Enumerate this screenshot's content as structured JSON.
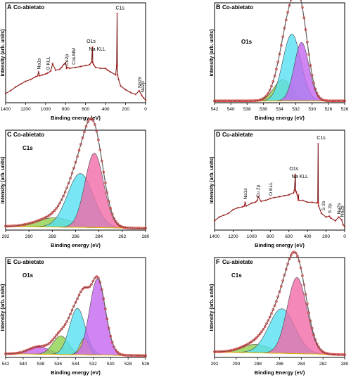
{
  "figure": {
    "colors": {
      "axis": "#000000",
      "raw": "#7a1a1a",
      "fit": "#d61f1f",
      "envelope": "#606060",
      "background_line": "#e8b800",
      "comp_green": "#8fd14f",
      "comp_cyan": "#57e0f2",
      "comp_pink": "#f06aa8",
      "comp_purple": "#c467ef",
      "comp_yellow": "#f2cf4e",
      "comp_gray": "#cccccc"
    }
  },
  "chart_data": [
    {
      "id": "A",
      "letter": "A",
      "type": "line",
      "title": "Co-abietato",
      "xlabel": "Binding energy (eV)",
      "ylabel": "Intensity (arb. units)",
      "xlim": [
        1400,
        0
      ],
      "ylim": [
        0,
        100
      ],
      "xticks": [
        1400,
        1200,
        1000,
        800,
        600,
        400,
        200,
        0
      ],
      "xticklabels": [
        "1400",
        "1200",
        "1000",
        "800",
        "600",
        "400",
        "200",
        "0"
      ],
      "kind": "survey",
      "series": [
        {
          "x": [
            1400,
            1350,
            1300,
            1250,
            1200,
            1150,
            1100,
            1080,
            1071,
            1060,
            1030,
            1000,
            980,
            950,
            930,
            900,
            860,
            840,
            820,
            800,
            790,
            780,
            760,
            700,
            650,
            600,
            560,
            540,
            531,
            528,
            520,
            500,
            450,
            400,
            380,
            350,
            300,
            290,
            285,
            283,
            280,
            270,
            250,
            200,
            150,
            100,
            64,
            40,
            20,
            0
          ],
          "y": [
            10,
            13,
            17,
            20,
            23,
            25,
            28,
            29,
            33,
            29,
            30,
            31,
            32,
            34,
            42,
            35,
            36,
            38,
            41,
            43,
            37,
            38,
            37,
            38,
            39,
            40,
            41,
            44,
            60,
            43,
            41,
            38,
            37,
            37,
            35,
            33,
            30,
            40,
            96,
            40,
            30,
            25,
            18,
            14,
            11,
            9,
            13,
            8,
            5,
            3
          ]
        }
      ],
      "annotations": [
        {
          "text": "Na1s",
          "x": 1071
        },
        {
          "text": "O KLL",
          "x": 978
        },
        {
          "text": "Co2p",
          "x": 790
        },
        {
          "text": "CoLMM",
          "x": 720
        },
        {
          "text": "O1s",
          "x": 531
        },
        {
          "text": "Na KLL",
          "x": 497
        },
        {
          "text": "C1s",
          "x": 285
        },
        {
          "text": "Na2s",
          "x": 64
        },
        {
          "text": "Na2p",
          "x": 31
        }
      ]
    },
    {
      "id": "B",
      "letter": "B",
      "type": "line",
      "title": "Co-abietato",
      "label": "O1s",
      "xlabel": "Binding energy (eV)",
      "ylabel": "Intensity (arb. units)",
      "xlim": [
        542,
        526
      ],
      "ylim": [
        0,
        100
      ],
      "xticks": [
        542,
        540,
        538,
        536,
        534,
        532,
        530,
        528,
        526
      ],
      "xticklabels": [
        "542",
        "540",
        "538",
        "536",
        "534",
        "532",
        "530",
        "528",
        "526"
      ],
      "kind": "fit",
      "background": [
        [
          542,
          2
        ],
        [
          526,
          2
        ]
      ],
      "components": [
        {
          "color": "comp_green",
          "center": 533.6,
          "height": 23,
          "width": 1.1
        },
        {
          "color": "comp_cyan",
          "center": 532.5,
          "height": 72,
          "width": 1.1
        },
        {
          "color": "comp_purple",
          "center": 531.3,
          "height": 63,
          "width": 0.9
        }
      ]
    },
    {
      "id": "C",
      "letter": "C",
      "type": "line",
      "title": "Co-abietato",
      "label": "C1s",
      "xlabel": "Binding energy (eV)",
      "ylabel": "Intensity (arb. units)",
      "xlim": [
        292,
        280
      ],
      "ylim": [
        0,
        100
      ],
      "xticks": [
        292,
        290,
        288,
        286,
        284,
        282,
        280
      ],
      "xticklabels": [
        "292",
        "290",
        "288",
        "286",
        "284",
        "282",
        "280"
      ],
      "kind": "fit",
      "background": [
        [
          292,
          4
        ],
        [
          280,
          2
        ]
      ],
      "components": [
        {
          "color": "comp_green",
          "center": 287.8,
          "height": 10,
          "width": 1.5
        },
        {
          "color": "comp_cyan",
          "center": 285.6,
          "height": 58,
          "width": 1.1
        },
        {
          "color": "comp_pink",
          "center": 284.4,
          "height": 80,
          "width": 0.8
        }
      ]
    },
    {
      "id": "D",
      "letter": "D",
      "type": "line",
      "title": "Cu-abietate",
      "xlabel": "Binding energy (eV)",
      "ylabel": "Intensity (arb. units)",
      "xlim": [
        1400,
        0
      ],
      "ylim": [
        0,
        100
      ],
      "xticks": [
        1400,
        1200,
        1000,
        800,
        600,
        400,
        200,
        0
      ],
      "xticklabels": [
        "1400",
        "1200",
        "1000",
        "800",
        "600",
        "400",
        "200",
        "0"
      ],
      "kind": "survey",
      "series": [
        {
          "x": [
            1400,
            1350,
            1300,
            1250,
            1200,
            1150,
            1100,
            1080,
            1071,
            1060,
            1000,
            960,
            940,
            930,
            900,
            850,
            800,
            760,
            700,
            650,
            600,
            550,
            540,
            531,
            527,
            520,
            500,
            497,
            494,
            450,
            400,
            350,
            300,
            290,
            285,
            283,
            280,
            250,
            200,
            165,
            150,
            100,
            64,
            31,
            20,
            0
          ],
          "y": [
            10,
            14,
            16,
            18,
            22,
            24,
            25,
            26,
            30,
            26,
            29,
            30,
            32,
            36,
            31,
            32,
            34,
            35,
            36,
            37,
            38,
            40,
            43,
            60,
            42,
            41,
            33,
            38,
            32,
            32,
            30,
            30,
            29,
            30,
            93,
            30,
            26,
            18,
            14,
            15,
            13,
            10,
            14,
            11,
            6,
            4
          ]
        }
      ],
      "annotations": [
        {
          "text": "Na1s",
          "x": 1071
        },
        {
          "text": "Cu 2p",
          "x": 935
        },
        {
          "text": "O KLL",
          "x": 800
        },
        {
          "text": "O1s",
          "x": 531
        },
        {
          "text": "Na KLL",
          "x": 497
        },
        {
          "text": "C1s",
          "x": 285
        },
        {
          "text": "S 2s",
          "x": 230
        },
        {
          "text": "S 2p",
          "x": 164
        },
        {
          "text": "Na2s",
          "x": 64
        },
        {
          "text": "Na2p",
          "x": 31
        }
      ]
    },
    {
      "id": "E",
      "letter": "E",
      "type": "line",
      "title": "Cu-abietate",
      "label": "O1s",
      "xlabel": "Binding energy (eV)",
      "ylabel": "Intensity (arb. units)",
      "xlim": [
        542,
        526
      ],
      "ylim": [
        0,
        100
      ],
      "xticks": [
        542,
        540,
        538,
        536,
        534,
        532,
        530,
        528,
        526
      ],
      "xticklabels": [
        "542",
        "540",
        "538",
        "536",
        "534",
        "532",
        "530",
        "528",
        "526"
      ],
      "kind": "fit",
      "background": [
        [
          542,
          4
        ],
        [
          526,
          2
        ]
      ],
      "components": [
        {
          "color": "comp_purple",
          "center": 538.2,
          "height": 8,
          "width": 1.2
        },
        {
          "color": "comp_green",
          "center": 535.7,
          "height": 20,
          "width": 0.9
        },
        {
          "color": "comp_cyan",
          "center": 533.8,
          "height": 50,
          "width": 0.9
        },
        {
          "color": "comp_yellow",
          "center": 533.0,
          "height": 18,
          "width": 0.5
        },
        {
          "color": "comp_purple",
          "center": 531.5,
          "height": 82,
          "width": 0.9
        }
      ]
    },
    {
      "id": "F",
      "letter": "F",
      "type": "line",
      "title": "Cu-abietate",
      "label": "C1s",
      "xlabel": "Binding Energy (eV)",
      "ylabel": "Intensity (arb. units)",
      "xlim": [
        292,
        280
      ],
      "ylim": [
        0,
        100
      ],
      "xticks": [
        292,
        290,
        288,
        286,
        284,
        282,
        280
      ],
      "xticklabels": [
        "292",
        "290",
        "288",
        "286",
        "284",
        "282",
        "280"
      ],
      "kind": "fit",
      "background": [
        [
          292,
          6
        ],
        [
          280,
          3
        ]
      ],
      "components": [
        {
          "color": "comp_green",
          "center": 288.2,
          "height": 9,
          "width": 1.3
        },
        {
          "color": "comp_cyan",
          "center": 285.8,
          "height": 48,
          "width": 1.2
        },
        {
          "color": "comp_pink",
          "center": 284.4,
          "height": 82,
          "width": 0.9
        }
      ]
    }
  ]
}
